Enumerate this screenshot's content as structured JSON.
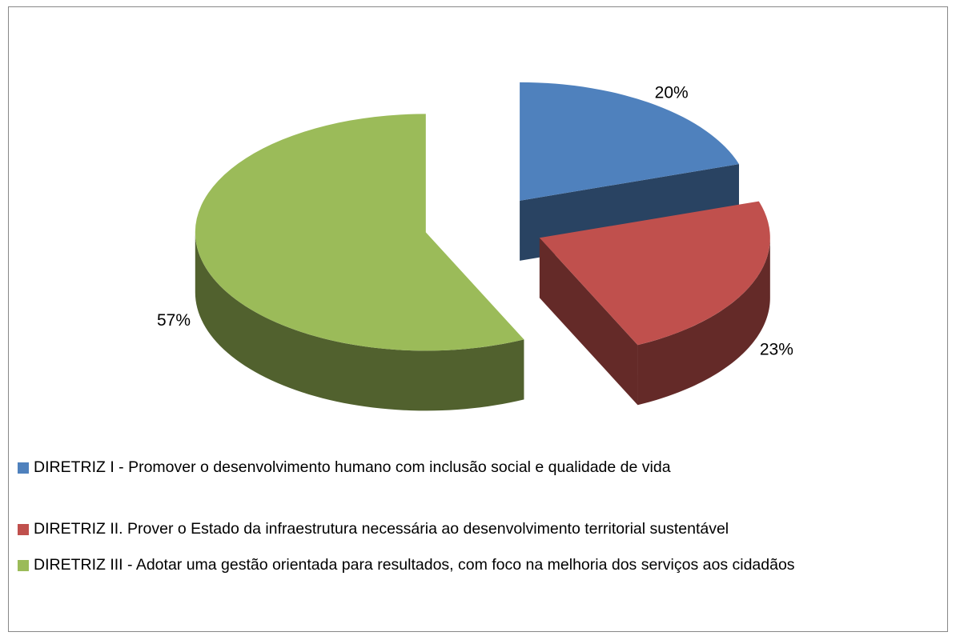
{
  "chart_data": {
    "type": "pie",
    "categories": [
      "DIRETRIZ I - Promover o desenvolvimento humano com inclusão social e qualidade de vida",
      "DIRETRIZ II. Prover o Estado da infraestrutura necessária ao desenvolvimento territorial sustentável",
      "DIRETRIZ III - Adotar uma gestão orientada para resultados, com foco na melhoria dos serviços aos cidadãos"
    ],
    "values": [
      20,
      23,
      57
    ],
    "value_labels": [
      "20%",
      "23%",
      "57%"
    ],
    "colors": [
      "#4f81bd",
      "#c0504d",
      "#9bbb59"
    ],
    "legend": "bottom"
  }
}
